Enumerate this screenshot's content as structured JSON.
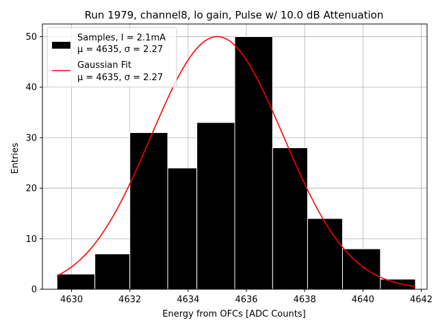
{
  "chart_data": {
    "type": "bar",
    "title": "Run 1979, channel8, lo gain, Pulse w/ 10.0 dB Attenuation",
    "xlabel": "Energy from OFCs [ADC Counts]",
    "ylabel": "Entries",
    "xlim": [
      4629.0,
      4642.2
    ],
    "ylim": [
      0,
      52.5
    ],
    "xticks": [
      4630,
      4632,
      4634,
      4636,
      4638,
      4640,
      4642
    ],
    "yticks": [
      0,
      10,
      20,
      30,
      40,
      50
    ],
    "grid": true,
    "legend_position": "top-left",
    "bin_edges": [
      4629.5,
      4630.8,
      4632.0,
      4633.3,
      4634.3,
      4635.6,
      4636.9,
      4638.1,
      4639.3,
      4640.6,
      4641.8
    ],
    "values": [
      3,
      7,
      31,
      24,
      33,
      50,
      28,
      14,
      8,
      2
    ],
    "series": [
      {
        "name": "Samples, I = 2.1mA",
        "stats": "μ = 4635, σ = 2.27",
        "kind": "histogram",
        "color": "#000000"
      },
      {
        "name": "Gaussian Fit",
        "stats": "μ = 4635, σ = 2.27",
        "kind": "line",
        "color": "#ff0000",
        "amplitude": 50,
        "mean": 4635,
        "sigma": 2.27,
        "x_range": [
          4629.5,
          4641.8
        ]
      }
    ]
  }
}
